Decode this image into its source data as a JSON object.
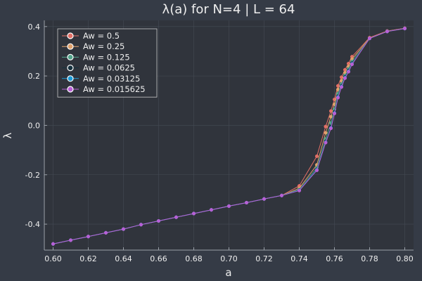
{
  "chart_data": {
    "type": "line",
    "title": "λ(a) for N=4 | L = 64",
    "xlabel": "a",
    "ylabel": "λ",
    "xlim": [
      0.595,
      0.805
    ],
    "ylim": [
      -0.505,
      0.425
    ],
    "xticks": [
      0.6,
      0.62,
      0.64,
      0.66,
      0.68,
      0.7,
      0.72,
      0.74,
      0.76,
      0.78,
      0.8
    ],
    "xtick_labels": [
      "0.60",
      "0.62",
      "0.64",
      "0.66",
      "0.68",
      "0.70",
      "0.72",
      "0.74",
      "0.76",
      "0.78",
      "0.80"
    ],
    "yticks": [
      -0.4,
      -0.2,
      0.0,
      0.2,
      0.4
    ],
    "ytick_labels": [
      "-0.4",
      "-0.2",
      "0.0",
      "0.2",
      "0.4"
    ],
    "grid": true,
    "legend_position": "top-left",
    "series": [
      {
        "name": "Aw = 0.5",
        "color": "#e26f66",
        "x": [
          0.6,
          0.61,
          0.62,
          0.63,
          0.64,
          0.65,
          0.66,
          0.67,
          0.68,
          0.69,
          0.7,
          0.71,
          0.72,
          0.73,
          0.74,
          0.75,
          0.755,
          0.758,
          0.76,
          0.762,
          0.764,
          0.766,
          0.768,
          0.77,
          0.78,
          0.79,
          0.8
        ],
        "y": [
          -0.48,
          -0.465,
          -0.45,
          -0.435,
          -0.42,
          -0.402,
          -0.387,
          -0.372,
          -0.357,
          -0.342,
          -0.327,
          -0.313,
          -0.298,
          -0.284,
          -0.245,
          -0.125,
          -0.005,
          0.058,
          0.105,
          0.16,
          0.195,
          0.225,
          0.25,
          0.278,
          0.355,
          0.382,
          0.393
        ]
      },
      {
        "name": "Aw = 0.25",
        "color": "#e0a16c",
        "x": [
          0.6,
          0.61,
          0.62,
          0.63,
          0.64,
          0.65,
          0.66,
          0.67,
          0.68,
          0.69,
          0.7,
          0.71,
          0.72,
          0.73,
          0.74,
          0.75,
          0.755,
          0.758,
          0.76,
          0.762,
          0.764,
          0.766,
          0.768,
          0.77,
          0.78,
          0.79,
          0.8
        ],
        "y": [
          -0.48,
          -0.465,
          -0.45,
          -0.435,
          -0.42,
          -0.402,
          -0.387,
          -0.372,
          -0.357,
          -0.342,
          -0.327,
          -0.313,
          -0.298,
          -0.284,
          -0.255,
          -0.16,
          -0.03,
          0.035,
          0.085,
          0.145,
          0.18,
          0.213,
          0.238,
          0.268,
          0.353,
          0.381,
          0.393
        ]
      },
      {
        "name": "Aw = 0.125",
        "color": "#52a38a",
        "x": [
          0.6,
          0.61,
          0.62,
          0.63,
          0.64,
          0.65,
          0.66,
          0.67,
          0.68,
          0.69,
          0.7,
          0.71,
          0.72,
          0.73,
          0.74,
          0.75,
          0.755,
          0.758,
          0.76,
          0.762,
          0.764,
          0.766,
          0.768,
          0.77,
          0.78,
          0.79,
          0.8
        ],
        "y": [
          -0.48,
          -0.465,
          -0.45,
          -0.435,
          -0.42,
          -0.402,
          -0.387,
          -0.372,
          -0.357,
          -0.342,
          -0.327,
          -0.313,
          -0.298,
          -0.284,
          -0.26,
          -0.172,
          -0.055,
          0.01,
          0.065,
          0.128,
          0.167,
          0.202,
          0.228,
          0.258,
          0.352,
          0.38,
          0.392
        ]
      },
      {
        "name": "Aw = 0.0625",
        "color": "#17323f",
        "x": [
          0.6,
          0.61,
          0.62,
          0.63,
          0.64,
          0.65,
          0.66,
          0.67,
          0.68,
          0.69,
          0.7,
          0.71,
          0.72,
          0.73,
          0.74,
          0.75,
          0.755,
          0.758,
          0.76,
          0.762,
          0.764,
          0.766,
          0.768,
          0.77,
          0.78,
          0.79,
          0.8
        ],
        "y": [
          -0.48,
          -0.465,
          -0.45,
          -0.435,
          -0.42,
          -0.402,
          -0.387,
          -0.372,
          -0.357,
          -0.342,
          -0.327,
          -0.313,
          -0.298,
          -0.284,
          -0.262,
          -0.178,
          -0.065,
          -0.005,
          0.055,
          0.118,
          0.16,
          0.196,
          0.222,
          0.252,
          0.352,
          0.38,
          0.392
        ]
      },
      {
        "name": "Aw = 0.03125",
        "color": "#1c9ad6",
        "x": [
          0.6,
          0.61,
          0.62,
          0.63,
          0.64,
          0.65,
          0.66,
          0.67,
          0.68,
          0.69,
          0.7,
          0.71,
          0.72,
          0.73,
          0.74,
          0.75,
          0.755,
          0.758,
          0.76,
          0.762,
          0.764,
          0.766,
          0.768,
          0.77,
          0.78,
          0.79,
          0.8
        ],
        "y": [
          -0.48,
          -0.465,
          -0.45,
          -0.435,
          -0.42,
          -0.402,
          -0.387,
          -0.372,
          -0.357,
          -0.342,
          -0.327,
          -0.313,
          -0.298,
          -0.284,
          -0.263,
          -0.18,
          -0.068,
          -0.01,
          0.05,
          0.115,
          0.157,
          0.193,
          0.219,
          0.249,
          0.352,
          0.38,
          0.392
        ]
      },
      {
        "name": "Aw = 0.015625",
        "color": "#b85fd6",
        "x": [
          0.6,
          0.61,
          0.62,
          0.63,
          0.64,
          0.65,
          0.66,
          0.67,
          0.68,
          0.69,
          0.7,
          0.71,
          0.72,
          0.73,
          0.74,
          0.75,
          0.755,
          0.758,
          0.76,
          0.762,
          0.764,
          0.766,
          0.768,
          0.77,
          0.78,
          0.79,
          0.8
        ],
        "y": [
          -0.48,
          -0.465,
          -0.45,
          -0.435,
          -0.42,
          -0.402,
          -0.387,
          -0.372,
          -0.357,
          -0.342,
          -0.327,
          -0.313,
          -0.298,
          -0.284,
          -0.264,
          -0.182,
          -0.07,
          -0.012,
          0.048,
          0.112,
          0.155,
          0.191,
          0.217,
          0.247,
          0.352,
          0.38,
          0.392
        ]
      }
    ]
  },
  "colors": {
    "background": "#353b46",
    "plot_background": "#30343c",
    "grid": "#454b55",
    "axis": "#9aa0a8",
    "text": "#eeeeee"
  }
}
